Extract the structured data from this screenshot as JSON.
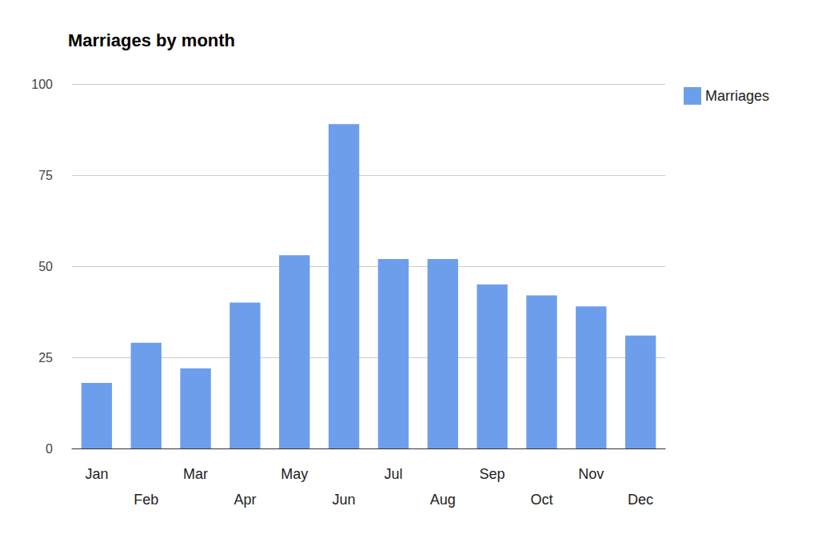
{
  "chart_data": {
    "type": "bar",
    "title": "Marriages by month",
    "categories": [
      "Jan",
      "Feb",
      "Mar",
      "Apr",
      "May",
      "Jun",
      "Jul",
      "Aug",
      "Sep",
      "Oct",
      "Nov",
      "Dec"
    ],
    "series": [
      {
        "name": "Marriages",
        "color": "#6d9eeb",
        "values": [
          18,
          29,
          22,
          40,
          53,
          89,
          52,
          52,
          45,
          42,
          39,
          31
        ]
      }
    ],
    "ylim": [
      0,
      100
    ],
    "yticks": [
      0,
      25,
      50,
      75,
      100
    ],
    "grid": true,
    "legend": "right"
  }
}
